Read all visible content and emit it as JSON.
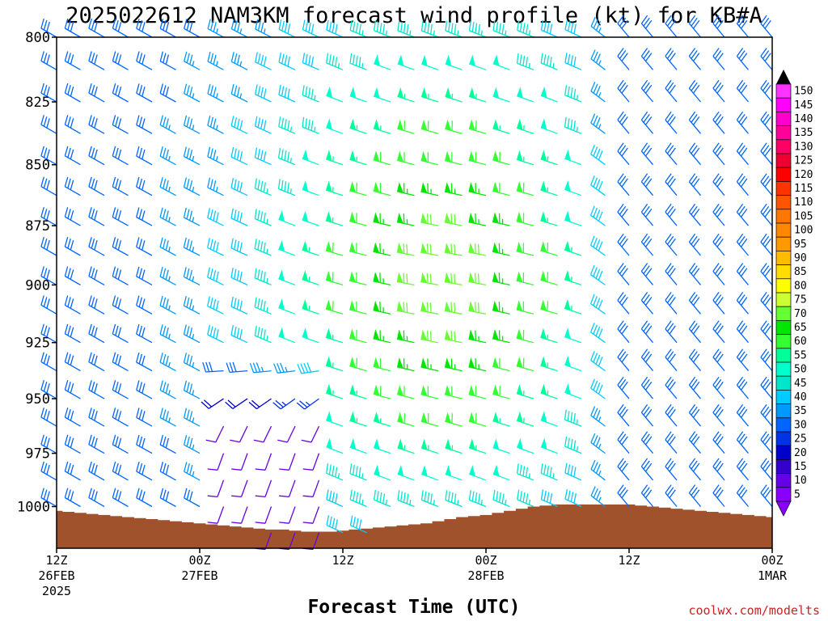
{
  "chart_data": {
    "type": "wind-barb time-height",
    "title": "2025022612 NAM3KM forecast wind profile (kt) for KB#A",
    "xlabel": "Forecast Time (UTC)",
    "ylabel": "",
    "y_ticks": [
      "800",
      "825",
      "850",
      "875",
      "900",
      "925",
      "950",
      "975",
      "1000"
    ],
    "y_range_hpa": [
      800,
      1020
    ],
    "x_ticks": [
      {
        "hour": 0,
        "line1": "12Z",
        "line2": "26FEB",
        "line3": "2025"
      },
      {
        "hour": 12,
        "line1": "00Z",
        "line2": "27FEB",
        "line3": ""
      },
      {
        "hour": 24,
        "line1": "12Z",
        "line2": "",
        "line3": ""
      },
      {
        "hour": 36,
        "line1": "00Z",
        "line2": "28FEB",
        "line3": ""
      },
      {
        "hour": 48,
        "line1": "12Z",
        "line2": "",
        "line3": ""
      },
      {
        "hour": 60,
        "line1": "00Z",
        "line2": "1MAR",
        "line3": ""
      }
    ],
    "x_range_hours": [
      0,
      60
    ],
    "time_step_hours": 1,
    "pressure_levels_hpa": [
      800,
      812.5,
      825,
      837.5,
      850,
      862.5,
      875,
      887.5,
      900,
      912.5,
      925,
      937.5,
      950,
      962.5,
      975,
      987.5,
      1000,
      1012.5
    ],
    "surface_pressure_hpa": [
      1002,
      1002.5,
      1003,
      1003.5,
      1004,
      1004.5,
      1005,
      1005.5,
      1006,
      1006.5,
      1007,
      1007.5,
      1008,
      1008.5,
      1009,
      1009.5,
      1010,
      1010.5,
      1011,
      1011,
      1011.5,
      1012,
      1012,
      1012,
      1011.5,
      1011,
      1010.5,
      1010,
      1009.5,
      1009,
      1008.5,
      1008,
      1007,
      1006,
      1005,
      1004.5,
      1004,
      1003,
      1002,
      1001,
      1000,
      999.5,
      999,
      999,
      999,
      999,
      999,
      999,
      999,
      999.5,
      1000,
      1000.5,
      1001,
      1001.5,
      1002,
      1002.5,
      1003,
      1003.5,
      1004,
      1004.5,
      1005
    ],
    "colorbar": {
      "levels": [
        5,
        10,
        15,
        20,
        25,
        30,
        35,
        40,
        45,
        50,
        55,
        60,
        65,
        70,
        75,
        80,
        85,
        90,
        95,
        100,
        105,
        110,
        115,
        120,
        125,
        130,
        135,
        140,
        145,
        150
      ],
      "colors": [
        "#8a00ff",
        "#6600e6",
        "#3300cc",
        "#0000cc",
        "#0033e6",
        "#0066ff",
        "#0099ff",
        "#00ccff",
        "#00e6cc",
        "#00ffcc",
        "#00ff99",
        "#33ff33",
        "#00e600",
        "#66ff33",
        "#ccff33",
        "#ffff00",
        "#ffdd00",
        "#ffbb00",
        "#ff9900",
        "#ff8800",
        "#ff7700",
        "#ff5500",
        "#ff3300",
        "#ff0000",
        "#ee0033",
        "#ff0066",
        "#ff0099",
        "#ff00cc",
        "#ff00ff",
        "#ff33ff"
      ]
    },
    "wind_field_description_kt": {
      "upper_levels_start": {
        "speed": 30,
        "direction_deg": 300
      },
      "jet_core": {
        "hour_range": [
          24,
          42
        ],
        "level_range_hpa": [
          850,
          950
        ],
        "max_speed": 70,
        "direction_deg": 280
      },
      "low_level_weak_zone": {
        "hour_range": [
          14,
          22
        ],
        "level_range_hpa": [
          925,
          1000
        ],
        "speed": 10,
        "direction_deg": 200
      },
      "late_period": {
        "hour_range": [
          44,
          60
        ],
        "speed": 30,
        "direction_deg": 320
      }
    },
    "grid": false,
    "legend": "right"
  },
  "credit": "coolwx.com/modelts"
}
